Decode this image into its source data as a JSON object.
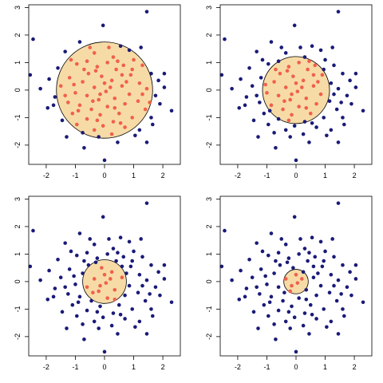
{
  "chart_data": [
    {
      "type": "scatter",
      "panel": "top-left",
      "xlim": [
        -2.6,
        2.6
      ],
      "ylim": [
        -2.7,
        3.1
      ],
      "xticks": [
        -2,
        -1,
        0,
        1,
        2
      ],
      "yticks": [
        -2,
        -1,
        0,
        1,
        2,
        3
      ],
      "circle": {
        "cx": 0,
        "cy": 0,
        "r": 1.65
      },
      "grid": false,
      "legend": "none"
    },
    {
      "type": "scatter",
      "panel": "top-right",
      "xlim": [
        -2.6,
        2.6
      ],
      "ylim": [
        -2.7,
        3.1
      ],
      "xticks": [
        -2,
        -1,
        0,
        1,
        2
      ],
      "yticks": [
        -2,
        -1,
        0,
        1,
        2,
        3
      ],
      "circle": {
        "cx": 0,
        "cy": 0,
        "r": 1.15
      },
      "grid": false,
      "legend": "none"
    },
    {
      "type": "scatter",
      "panel": "bottom-left",
      "xlim": [
        -2.6,
        2.6
      ],
      "ylim": [
        -2.7,
        3.1
      ],
      "xticks": [
        -2,
        -1,
        0,
        1,
        2
      ],
      "yticks": [
        -2,
        -1,
        0,
        1,
        2,
        3
      ],
      "circle": {
        "cx": 0,
        "cy": 0,
        "r": 0.75
      },
      "grid": false,
      "legend": "none"
    },
    {
      "type": "scatter",
      "panel": "bottom-right",
      "xlim": [
        -2.6,
        2.6
      ],
      "ylim": [
        -2.7,
        3.1
      ],
      "xticks": [
        -2,
        -1,
        0,
        1,
        2
      ],
      "yticks": [
        -2,
        -1,
        0,
        1,
        2,
        3
      ],
      "circle": {
        "cx": 0,
        "cy": 0,
        "r": 0.42
      },
      "grid": false,
      "legend": "none"
    }
  ],
  "points": [
    [
      -0.05,
      2.35
    ],
    [
      -0.85,
      1.75
    ],
    [
      1.45,
      2.85
    ],
    [
      -2.45,
      1.85
    ],
    [
      0.55,
      1.6
    ],
    [
      -0.35,
      1.35
    ],
    [
      0.85,
      1.45
    ],
    [
      -1.35,
      1.4
    ],
    [
      0.3,
      1.2
    ],
    [
      -0.6,
      1.05
    ],
    [
      0.1,
      1.0
    ],
    [
      1.0,
      1.1
    ],
    [
      -0.95,
      0.95
    ],
    [
      0.65,
      0.9
    ],
    [
      -0.25,
      0.85
    ],
    [
      1.3,
      0.9
    ],
    [
      -1.6,
      0.8
    ],
    [
      0.4,
      0.75
    ],
    [
      -0.55,
      0.6
    ],
    [
      1.6,
      0.6
    ],
    [
      -1.9,
      0.4
    ],
    [
      0.9,
      0.55
    ],
    [
      -0.1,
      0.5
    ],
    [
      -1.2,
      0.45
    ],
    [
      1.85,
      0.35
    ],
    [
      0.25,
      0.35
    ],
    [
      -0.75,
      0.3
    ],
    [
      1.2,
      0.25
    ],
    [
      -1.5,
      0.15
    ],
    [
      0.6,
      0.15
    ],
    [
      -0.35,
      0.1
    ],
    [
      2.05,
      0.1
    ],
    [
      -2.2,
      0.05
    ],
    [
      1.45,
      0.05
    ],
    [
      0.05,
      -0.05
    ],
    [
      -1.0,
      -0.1
    ],
    [
      0.85,
      -0.15
    ],
    [
      -0.6,
      -0.2
    ],
    [
      1.75,
      -0.2
    ],
    [
      -1.7,
      -0.25
    ],
    [
      0.35,
      -0.3
    ],
    [
      -0.2,
      -0.35
    ],
    [
      1.15,
      -0.4
    ],
    [
      -1.25,
      -0.45
    ],
    [
      0.7,
      -0.5
    ],
    [
      -0.85,
      -0.55
    ],
    [
      1.9,
      -0.5
    ],
    [
      0.1,
      -0.6
    ],
    [
      -1.95,
      -0.65
    ],
    [
      1.4,
      -0.7
    ],
    [
      -0.45,
      -0.7
    ],
    [
      2.3,
      -0.75
    ],
    [
      0.5,
      -0.85
    ],
    [
      -1.1,
      -0.85
    ],
    [
      -0.15,
      -0.9
    ],
    [
      1.6,
      -1.0
    ],
    [
      0.95,
      -1.0
    ],
    [
      -0.6,
      -1.05
    ],
    [
      -1.45,
      -1.1
    ],
    [
      0.3,
      -1.15
    ],
    [
      1.65,
      -1.25
    ],
    [
      -0.05,
      -1.3
    ],
    [
      -0.95,
      -1.25
    ],
    [
      0.7,
      -1.35
    ],
    [
      -0.35,
      -1.45
    ],
    [
      1.2,
      -1.45
    ],
    [
      -0.75,
      -1.55
    ],
    [
      0.25,
      -1.6
    ],
    [
      1.45,
      -1.9
    ],
    [
      -0.7,
      -2.1
    ],
    [
      0.0,
      -2.55
    ],
    [
      0.45,
      -1.9
    ],
    [
      -0.2,
      -1.7
    ],
    [
      1.05,
      -1.65
    ],
    [
      -1.3,
      -1.7
    ],
    [
      0.75,
      0.3
    ],
    [
      -0.5,
      1.55
    ],
    [
      1.25,
      1.55
    ],
    [
      -1.05,
      0.2
    ],
    [
      0.15,
      1.55
    ],
    [
      -2.55,
      0.55
    ],
    [
      2.05,
      0.6
    ],
    [
      -1.75,
      -0.55
    ],
    [
      1.55,
      -0.45
    ],
    [
      -0.25,
      -1.1
    ],
    [
      0.55,
      -1.2
    ],
    [
      -0.9,
      -0.75
    ],
    [
      0.95,
      0.75
    ],
    [
      -0.7,
      0.75
    ],
    [
      0.0,
      0.25
    ],
    [
      0.35,
      -0.65
    ],
    [
      -0.4,
      -0.4
    ],
    [
      0.6,
      0.55
    ],
    [
      -0.15,
      -0.15
    ],
    [
      0.2,
      0.1
    ],
    [
      -1.35,
      -0.2
    ],
    [
      1.3,
      -0.15
    ],
    [
      -0.3,
      0.7
    ],
    [
      0.45,
      1.05
    ],
    [
      -1.15,
      1.1
    ]
  ],
  "colors": {
    "inside_point": "#f0604c",
    "outside_point": "#1a1a78",
    "circle_fill": "#f7dba6",
    "axis": "#000000"
  }
}
